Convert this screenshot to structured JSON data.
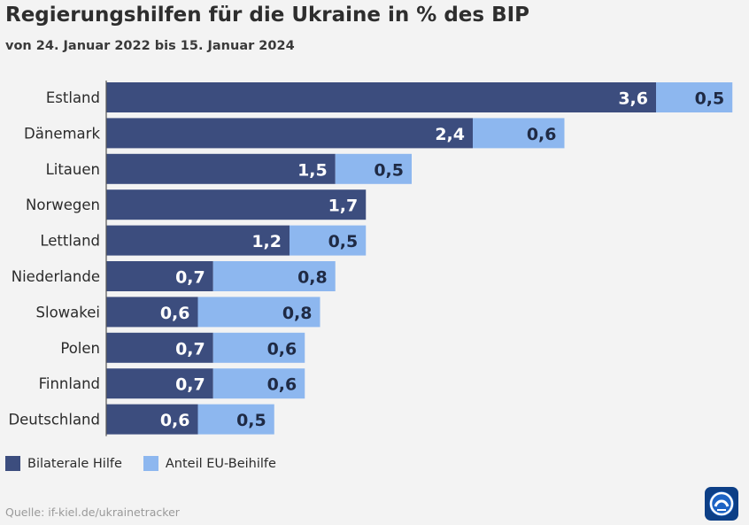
{
  "title": "Regierungshilfen für die Ukraine in % des BIP",
  "subtitle": "von 24. Januar 2022 bis 15. Januar 2024",
  "source": "Quelle: if-kiel.de/ukrainetracker",
  "colors": {
    "bilateral": "#3c4d7e",
    "eu": "#8db7ef",
    "background": "#f3f3f3"
  },
  "logo_icon": "ard-tagesschau-logo-icon",
  "chart_data": {
    "type": "bar",
    "orientation": "horizontal",
    "stacked": true,
    "categories": [
      "Estland",
      "Dänemark",
      "Litauen",
      "Norwegen",
      "Lettland",
      "Niederlande",
      "Slowakei",
      "Polen",
      "Finnland",
      "Deutschland"
    ],
    "series": [
      {
        "name": "Bilaterale Hilfe",
        "values": [
          3.6,
          2.4,
          1.5,
          1.7,
          1.2,
          0.7,
          0.6,
          0.7,
          0.7,
          0.6
        ],
        "labels": [
          "3,6",
          "2,4",
          "1,5",
          "1,7",
          "1,2",
          "0,7",
          "0,6",
          "0,7",
          "0,7",
          "0,6"
        ]
      },
      {
        "name": "Anteil EU-Beihilfe",
        "values": [
          0.5,
          0.6,
          0.5,
          null,
          0.5,
          0.8,
          0.8,
          0.6,
          0.6,
          0.5
        ],
        "labels": [
          "0,5",
          "0,6",
          "0,5",
          "",
          "0,5",
          "0,8",
          "0,8",
          "0,6",
          "0,6",
          "0,5"
        ]
      }
    ],
    "xlim": [
      0,
      4.1
    ],
    "grid": false,
    "legend": "bottom-left"
  }
}
